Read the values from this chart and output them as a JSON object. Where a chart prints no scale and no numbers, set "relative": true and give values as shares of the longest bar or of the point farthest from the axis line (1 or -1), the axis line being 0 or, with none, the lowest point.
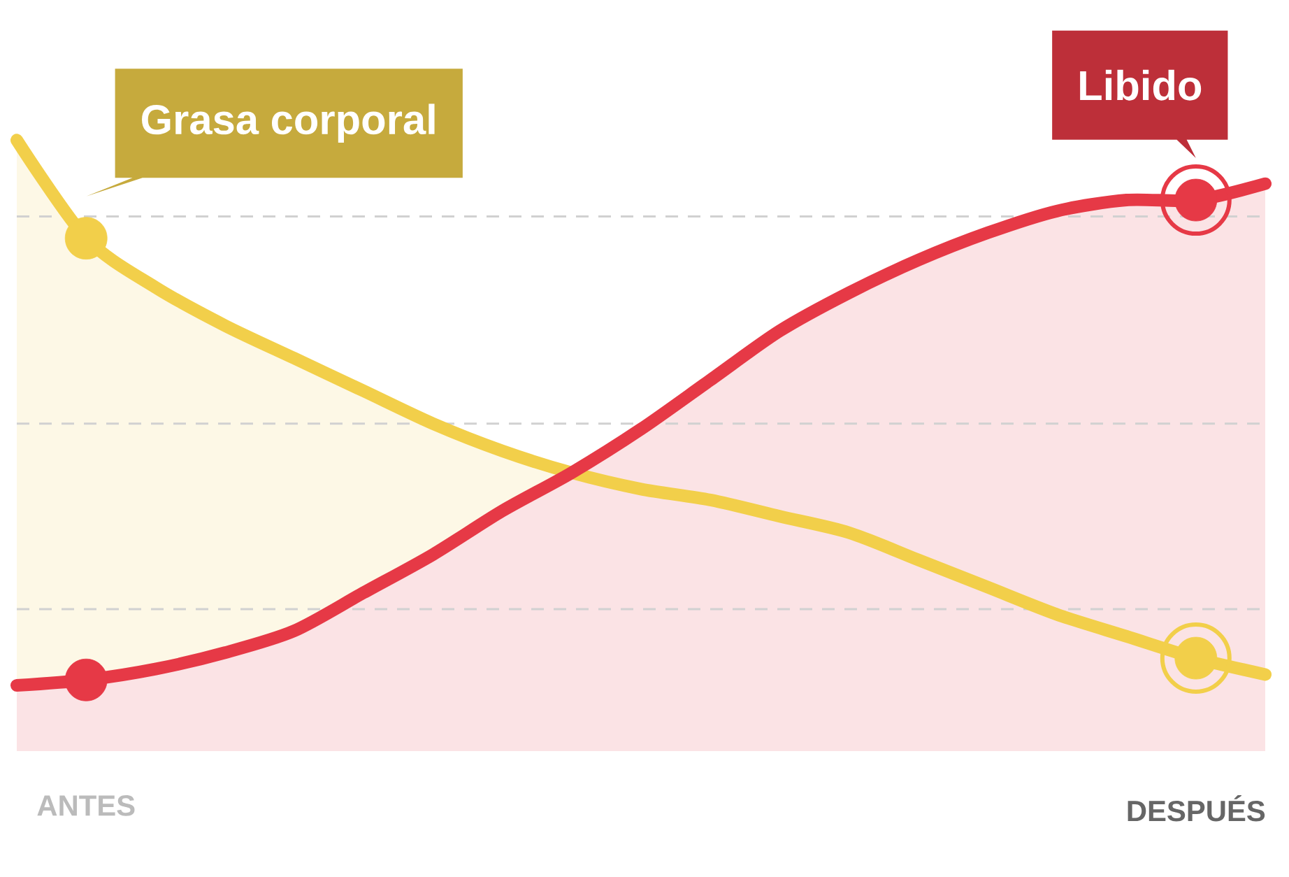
{
  "chart_data": {
    "type": "area",
    "relative": true,
    "line_style": "solid",
    "ref_lines": [
      {
        "axis": "y",
        "value": 0.14,
        "color": "#d1d1d1",
        "line_style": "dashed"
      },
      {
        "axis": "y",
        "value": 0.48,
        "color": "#d1d1d1",
        "line_style": "dashed"
      },
      {
        "axis": "y",
        "value": 0.86,
        "color": "#d1d1d1",
        "line_style": "dashed"
      }
    ],
    "categories": [
      null,
      "ANTES",
      null,
      null,
      null,
      null,
      null,
      null,
      null,
      null,
      null,
      null,
      null,
      null,
      null,
      null,
      null,
      "DESPUÉS",
      null
    ],
    "series": [
      {
        "name": "Grasa corporal",
        "color": "#f2cf4a",
        "values": [
          1.0,
          0.82,
          0.73,
          0.66,
          0.6,
          0.54,
          0.48,
          0.43,
          0.39,
          0.36,
          0.34,
          0.31,
          0.28,
          0.23,
          0.18,
          0.13,
          0.09,
          0.05,
          0.02
        ]
      },
      {
        "name": "Libido",
        "color": "#e63946",
        "values": [
          0.0,
          0.01,
          0.03,
          0.06,
          0.1,
          0.17,
          0.24,
          0.32,
          0.39,
          0.47,
          0.56,
          0.65,
          0.72,
          0.78,
          0.83,
          0.87,
          0.89,
          0.89,
          0.92
        ]
      }
    ]
  }
}
